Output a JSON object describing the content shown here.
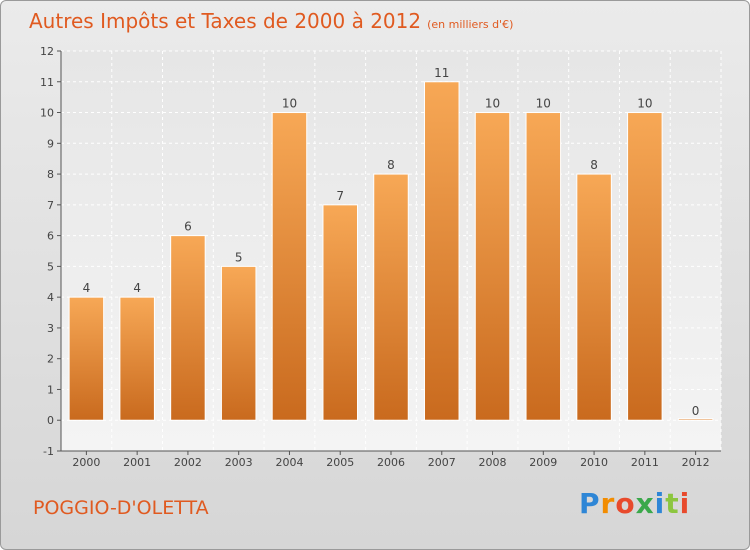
{
  "header": {
    "title": "Autres Impôts et Taxes de 2000 à 2012",
    "subtitle": "(en milliers d'€)"
  },
  "footer": {
    "commune": "POGGIO-D'OLETTA",
    "logo_text": "Proxiti"
  },
  "colors": {
    "bar_light": "#f5a552",
    "bar_dark": "#c8671b",
    "title": "#e05a20"
  },
  "chart_data": {
    "type": "bar",
    "title": "Autres Impôts et Taxes de 2000 à 2012",
    "subtitle": "(en milliers d'€)",
    "xlabel": "",
    "ylabel": "",
    "categories": [
      "2000",
      "2001",
      "2002",
      "2003",
      "2004",
      "2005",
      "2006",
      "2007",
      "2008",
      "2009",
      "2010",
      "2011",
      "2012"
    ],
    "values": [
      4,
      4,
      6,
      5,
      10,
      7,
      8,
      11,
      10,
      10,
      8,
      10,
      0
    ],
    "data_labels": [
      "4",
      "4",
      "6",
      "5",
      "10",
      "7",
      "8",
      "11",
      "10",
      "10",
      "8",
      "10",
      "0"
    ],
    "ylim": [
      -1,
      12
    ],
    "yticks": [
      -1,
      0,
      1,
      2,
      3,
      4,
      5,
      6,
      7,
      8,
      9,
      10,
      11,
      12
    ],
    "ytick_labels": [
      "-1",
      "0",
      "1",
      "2",
      "3",
      "4",
      "5",
      "6",
      "7",
      "8",
      "9",
      "10",
      "11",
      "12"
    ],
    "grid": true,
    "legend": "none"
  }
}
